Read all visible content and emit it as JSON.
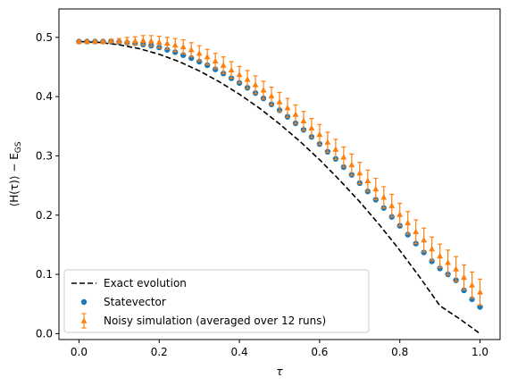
{
  "chart_data": {
    "type": "scatter",
    "xlabel": "τ",
    "ylabel_parts": {
      "open": "⟨H(τ)⟩ − E",
      "sub": "GS"
    },
    "xlim": [
      -0.05,
      1.05
    ],
    "ylim": [
      -0.01,
      0.548
    ],
    "xticks": [
      "0.0",
      "0.2",
      "0.4",
      "0.6",
      "0.8",
      "1.0"
    ],
    "yticks": [
      "0.0",
      "0.1",
      "0.2",
      "0.3",
      "0.4",
      "0.5"
    ],
    "grid": false,
    "legend_position": "lower left",
    "series": [
      {
        "name": "Exact evolution",
        "style": "dashed-line",
        "color": "#000000",
        "x": [
          0.0,
          0.05,
          0.1,
          0.15,
          0.2,
          0.25,
          0.3,
          0.35,
          0.4,
          0.45,
          0.5,
          0.55,
          0.6,
          0.65,
          0.7,
          0.75,
          0.8,
          0.85,
          0.9,
          0.95,
          1.0
        ],
        "y": [
          0.493,
          0.4915,
          0.4875,
          0.481,
          0.4715,
          0.459,
          0.4435,
          0.425,
          0.404,
          0.3805,
          0.354,
          0.325,
          0.2935,
          0.259,
          0.2225,
          0.183,
          0.1405,
          0.095,
          0.047,
          0.0245,
          0.0
        ]
      },
      {
        "name": "Statevector",
        "style": "dots",
        "color": "#1f77b4",
        "x": [
          0.0,
          0.02,
          0.04,
          0.06,
          0.08,
          0.1,
          0.12,
          0.14,
          0.16,
          0.18,
          0.2,
          0.22,
          0.24,
          0.26,
          0.28,
          0.3,
          0.32,
          0.34,
          0.36,
          0.38,
          0.4,
          0.42,
          0.44,
          0.46,
          0.48,
          0.5,
          0.52,
          0.54,
          0.56,
          0.58,
          0.6,
          0.62,
          0.64,
          0.66,
          0.68,
          0.7,
          0.72,
          0.74,
          0.76,
          0.78,
          0.8,
          0.82,
          0.84,
          0.86,
          0.88,
          0.9,
          0.92,
          0.94,
          0.96,
          0.98,
          1.0
        ],
        "y": [
          0.493,
          0.493,
          0.493,
          0.493,
          0.493,
          0.492,
          0.491,
          0.49,
          0.488,
          0.486,
          0.483,
          0.479,
          0.475,
          0.47,
          0.465,
          0.459,
          0.453,
          0.446,
          0.439,
          0.431,
          0.423,
          0.415,
          0.406,
          0.397,
          0.387,
          0.377,
          0.366,
          0.355,
          0.344,
          0.332,
          0.32,
          0.307,
          0.295,
          0.281,
          0.268,
          0.254,
          0.24,
          0.226,
          0.212,
          0.197,
          0.182,
          0.167,
          0.152,
          0.137,
          0.122,
          0.11,
          0.1,
          0.09,
          0.073,
          0.058,
          0.045
        ]
      },
      {
        "name": "Noisy simulation (averaged over 12 runs)",
        "style": "triangles-errorbars",
        "color": "#ff7f0e",
        "x": [
          0.0,
          0.02,
          0.04,
          0.06,
          0.08,
          0.1,
          0.12,
          0.14,
          0.16,
          0.18,
          0.2,
          0.22,
          0.24,
          0.26,
          0.28,
          0.3,
          0.32,
          0.34,
          0.36,
          0.38,
          0.4,
          0.42,
          0.44,
          0.46,
          0.48,
          0.5,
          0.52,
          0.54,
          0.56,
          0.58,
          0.6,
          0.62,
          0.64,
          0.66,
          0.68,
          0.7,
          0.72,
          0.74,
          0.76,
          0.78,
          0.8,
          0.82,
          0.84,
          0.86,
          0.88,
          0.9,
          0.92,
          0.94,
          0.96,
          0.98,
          1.0
        ],
        "y": [
          0.493,
          0.493,
          0.493,
          0.493,
          0.494,
          0.494,
          0.494,
          0.494,
          0.495,
          0.494,
          0.492,
          0.49,
          0.487,
          0.484,
          0.479,
          0.473,
          0.467,
          0.46,
          0.453,
          0.445,
          0.437,
          0.429,
          0.42,
          0.411,
          0.401,
          0.391,
          0.381,
          0.37,
          0.359,
          0.347,
          0.336,
          0.323,
          0.311,
          0.298,
          0.285,
          0.271,
          0.258,
          0.244,
          0.23,
          0.216,
          0.201,
          0.187,
          0.172,
          0.158,
          0.143,
          0.131,
          0.12,
          0.109,
          0.095,
          0.082,
          0.07
        ],
        "err": [
          0.002,
          0.002,
          0.002,
          0.002,
          0.003,
          0.004,
          0.006,
          0.007,
          0.008,
          0.009,
          0.01,
          0.01,
          0.011,
          0.012,
          0.012,
          0.013,
          0.013,
          0.013,
          0.014,
          0.014,
          0.014,
          0.015,
          0.015,
          0.015,
          0.015,
          0.016,
          0.016,
          0.016,
          0.016,
          0.016,
          0.017,
          0.017,
          0.017,
          0.017,
          0.018,
          0.018,
          0.018,
          0.018,
          0.018,
          0.019,
          0.019,
          0.019,
          0.02,
          0.02,
          0.02,
          0.02,
          0.021,
          0.021,
          0.021,
          0.022,
          0.022
        ]
      }
    ]
  }
}
